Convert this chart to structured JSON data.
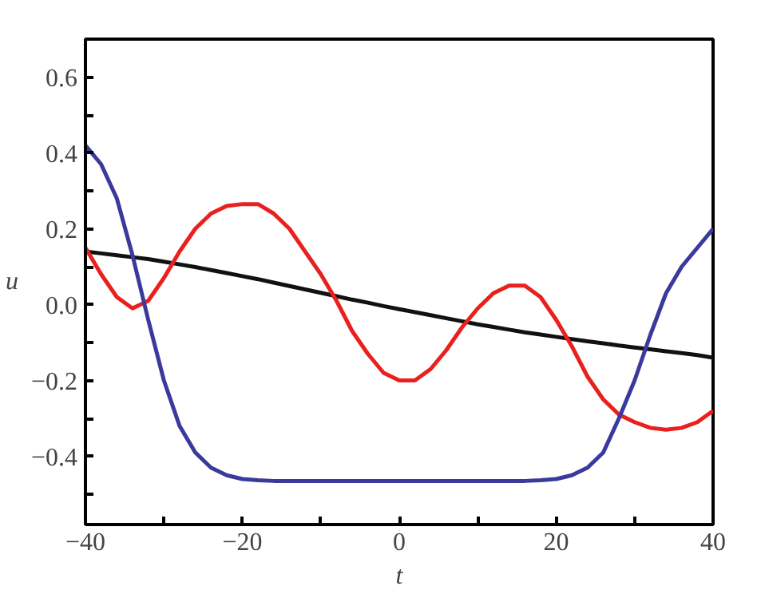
{
  "chart_data": {
    "type": "line",
    "xlabel": "t",
    "ylabel": "u",
    "x": [
      -40,
      -38,
      -36,
      -34,
      -32,
      -30,
      -28,
      -26,
      -24,
      -22,
      -20,
      -18,
      -16,
      -14,
      -12,
      -10,
      -8,
      -6,
      -4,
      -2,
      0,
      2,
      4,
      6,
      8,
      10,
      12,
      14,
      16,
      18,
      20,
      22,
      24,
      26,
      28,
      30,
      32,
      34,
      36,
      38,
      40
    ],
    "series": [
      {
        "color": "#111111",
        "values": [
          0.14,
          0.135,
          0.13,
          0.125,
          0.12,
          0.113,
          0.106,
          0.099,
          0.091,
          0.083,
          0.075,
          0.067,
          0.058,
          0.049,
          0.04,
          0.031,
          0.022,
          0.013,
          0.005,
          -0.004,
          -0.012,
          -0.02,
          -0.028,
          -0.036,
          -0.044,
          -0.052,
          -0.059,
          -0.066,
          -0.073,
          -0.079,
          -0.085,
          -0.091,
          -0.097,
          -0.102,
          -0.108,
          -0.113,
          -0.118,
          -0.123,
          -0.128,
          -0.133,
          -0.14
        ]
      },
      {
        "color": "#e8201e",
        "values": [
          0.15,
          0.08,
          0.02,
          -0.01,
          0.01,
          0.07,
          0.14,
          0.2,
          0.24,
          0.26,
          0.265,
          0.265,
          0.24,
          0.2,
          0.14,
          0.08,
          0.01,
          -0.07,
          -0.13,
          -0.18,
          -0.2,
          -0.2,
          -0.17,
          -0.12,
          -0.06,
          -0.01,
          0.03,
          0.05,
          0.05,
          0.02,
          -0.04,
          -0.11,
          -0.19,
          -0.25,
          -0.29,
          -0.31,
          -0.325,
          -0.33,
          -0.325,
          -0.31,
          -0.28
        ]
      },
      {
        "color": "#3a3a9c",
        "values": [
          0.42,
          0.37,
          0.28,
          0.13,
          -0.04,
          -0.2,
          -0.32,
          -0.39,
          -0.43,
          -0.45,
          -0.46,
          -0.463,
          -0.465,
          -0.465,
          -0.465,
          -0.465,
          -0.465,
          -0.465,
          -0.465,
          -0.465,
          -0.465,
          -0.465,
          -0.465,
          -0.465,
          -0.465,
          -0.465,
          -0.465,
          -0.465,
          -0.465,
          -0.463,
          -0.46,
          -0.45,
          -0.43,
          -0.39,
          -0.3,
          -0.2,
          -0.08,
          0.03,
          0.1,
          0.15,
          0.2
        ]
      }
    ],
    "xlim": [
      -40,
      40
    ],
    "ylim": [
      -0.58,
      0.7
    ],
    "xticks": [
      {
        "value": -40,
        "label": "−40"
      },
      {
        "value": -30,
        "label": null
      },
      {
        "value": -20,
        "label": "−20"
      },
      {
        "value": -10,
        "label": null
      },
      0,
      {
        "value": 10,
        "label": null
      },
      20,
      {
        "value": 30,
        "label": null
      },
      40
    ],
    "yticks": [
      {
        "value": -0.5,
        "label": null
      },
      {
        "value": -0.4,
        "label": "−0.4"
      },
      {
        "value": -0.3,
        "label": null
      },
      {
        "value": -0.2,
        "label": "−0.2"
      },
      {
        "value": -0.1,
        "label": null
      },
      {
        "value": 0,
        "label": "0.0"
      },
      {
        "value": 0.1,
        "label": null
      },
      {
        "value": 0.2,
        "label": "0.2"
      },
      {
        "value": 0.3,
        "label": null
      },
      {
        "value": 0.4,
        "label": "0.4"
      },
      {
        "value": 0.5,
        "label": null
      },
      {
        "value": 0.6,
        "label": "0.6"
      }
    ],
    "grid": false,
    "line_style": "solid",
    "marker": "none"
  }
}
